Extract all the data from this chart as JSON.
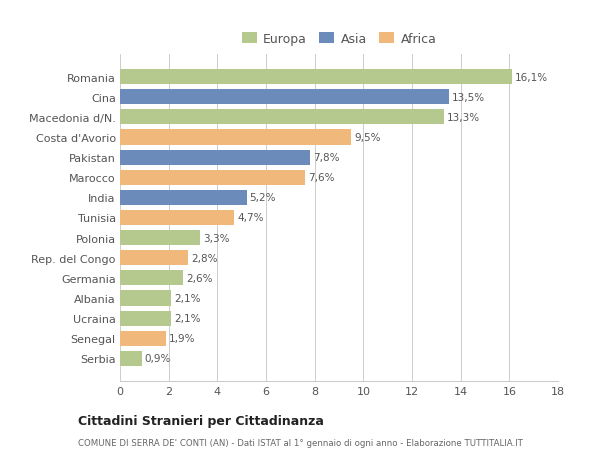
{
  "categories": [
    "Romania",
    "Cina",
    "Macedonia d/N.",
    "Costa d'Avorio",
    "Pakistan",
    "Marocco",
    "India",
    "Tunisia",
    "Polonia",
    "Rep. del Congo",
    "Germania",
    "Albania",
    "Ucraina",
    "Senegal",
    "Serbia"
  ],
  "values": [
    16.1,
    13.5,
    13.3,
    9.5,
    7.8,
    7.6,
    5.2,
    4.7,
    3.3,
    2.8,
    2.6,
    2.1,
    2.1,
    1.9,
    0.9
  ],
  "labels": [
    "16,1%",
    "13,5%",
    "13,3%",
    "9,5%",
    "7,8%",
    "7,6%",
    "5,2%",
    "4,7%",
    "3,3%",
    "2,8%",
    "2,6%",
    "2,1%",
    "2,1%",
    "1,9%",
    "0,9%"
  ],
  "continents": [
    "Europa",
    "Asia",
    "Europa",
    "Africa",
    "Asia",
    "Africa",
    "Asia",
    "Africa",
    "Europa",
    "Africa",
    "Europa",
    "Europa",
    "Europa",
    "Africa",
    "Europa"
  ],
  "colors": {
    "Europa": "#b5c98e",
    "Asia": "#6b8cba",
    "Africa": "#f0b87a"
  },
  "legend_order": [
    "Europa",
    "Asia",
    "Africa"
  ],
  "xlim": [
    0,
    18
  ],
  "xticks": [
    0,
    2,
    4,
    6,
    8,
    10,
    12,
    14,
    16,
    18
  ],
  "title": "Cittadini Stranieri per Cittadinanza",
  "subtitle": "COMUNE DI SERRA DE' CONTI (AN) - Dati ISTAT al 1° gennaio di ogni anno - Elaborazione TUTTITALIA.IT",
  "bg_color": "#ffffff",
  "grid_color": "#cccccc",
  "bar_height": 0.75
}
